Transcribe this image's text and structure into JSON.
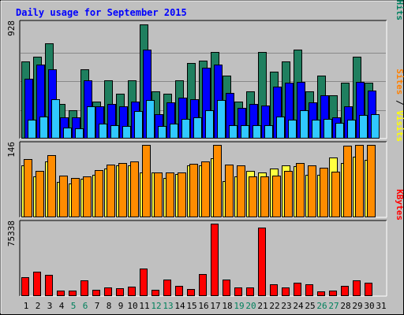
{
  "chart_data": {
    "type": "bar",
    "title": "Daily usage for September 2015",
    "categories": [
      "1",
      "2",
      "3",
      "4",
      "5",
      "6",
      "7",
      "8",
      "9",
      "10",
      "11",
      "12",
      "13",
      "14",
      "15",
      "16",
      "17",
      "18",
      "19",
      "20",
      "21",
      "22",
      "23",
      "24",
      "25",
      "26",
      "27",
      "28",
      "29",
      "30",
      "31"
    ],
    "weekend_days": [
      "5",
      "6",
      "12",
      "13",
      "19",
      "20",
      "26",
      "27"
    ],
    "panels": [
      {
        "name": "usage",
        "axis_max_label": "928",
        "ymax": 928,
        "vertical_legend": [
          {
            "text": "Pages",
            "color": "#00C0FF"
          },
          {
            "text": " / ",
            "color": "#000000"
          },
          {
            "text": "Files",
            "color": "#0000FF"
          },
          {
            "text": " / ",
            "color": "#000000"
          },
          {
            "text": "Hits",
            "color": "#008060"
          }
        ],
        "series": [
          {
            "name": "Hits",
            "color": "#1F7F5F",
            "values": [
              620,
              660,
              770,
              280,
              230,
              560,
              300,
              470,
              360,
              470,
              920,
              380,
              360,
              470,
              610,
              630,
              700,
              510,
              300,
              380,
              700,
              540,
              620,
              720,
              380,
              510,
              350,
              450,
              660,
              450,
              0
            ]
          },
          {
            "name": "Files",
            "color": "#0000FF",
            "values": [
              480,
              600,
              560,
              170,
              170,
              470,
              260,
              280,
              260,
              300,
              720,
              200,
              290,
              330,
              320,
              570,
              600,
              370,
              250,
              280,
              270,
              420,
              450,
              460,
              290,
              350,
              170,
              260,
              460,
              390,
              0
            ]
          },
          {
            "name": "Pages",
            "color": "#30C8FF",
            "values": [
              150,
              180,
              320,
              90,
              80,
              260,
              120,
              110,
              100,
              220,
              310,
              100,
              120,
              160,
              170,
              230,
              310,
              110,
              110,
              110,
              110,
              180,
              150,
              230,
              150,
              160,
              130,
              150,
              190,
              200,
              0
            ]
          }
        ]
      },
      {
        "name": "visits",
        "axis_max_label": "146",
        "ymax": 146,
        "vertical_legend": [
          {
            "text": "Sites",
            "color": "#FF8000"
          },
          {
            "text": " / ",
            "color": "#000000"
          },
          {
            "text": "Visits",
            "color": "#FFFF00"
          }
        ],
        "series": [
          {
            "name": "Visits",
            "color": "#FFFF40",
            "values": [
              104,
              82,
              113,
              72,
              69,
              77,
              86,
              98,
              105,
              104,
              91,
              90,
              80,
              87,
              104,
              104,
              119,
              73,
              83,
              94,
              91,
              98,
              104,
              103,
              85,
              86,
              120,
              109,
              122,
              116,
              0
            ]
          },
          {
            "name": "Sites",
            "color": "#FF8C00",
            "values": [
              118,
              94,
              126,
              84,
              79,
              82,
              95,
              106,
              110,
              112,
              146,
              90,
              90,
              90,
              108,
              112,
              146,
              106,
              104,
              82,
              82,
              84,
              93,
              110,
              104,
              100,
              92,
              144,
              146,
              146,
              0
            ]
          }
        ]
      },
      {
        "name": "kbytes",
        "axis_max_label": "75338",
        "ymax": 75338,
        "vertical_legend": [
          {
            "text": "KBytes",
            "color": "#FF0000"
          }
        ],
        "series": [
          {
            "name": "KBytes",
            "color": "#FF0000",
            "values": [
              20000,
              25000,
              22000,
              5500,
              5500,
              16500,
              6500,
              9000,
              8500,
              10000,
              28800,
              6600,
              17200,
              10500,
              7000,
              23000,
              75338,
              17500,
              9200,
              9000,
              71200,
              12200,
              9200,
              14300,
              12000,
              4700,
              5500,
              10400,
              16000,
              14200,
              0
            ]
          }
        ]
      }
    ]
  },
  "colors": {
    "background": "#C0C0C0",
    "title": "#0000FF",
    "weekday_label": "#000000",
    "weekend_label": "#00805C"
  }
}
